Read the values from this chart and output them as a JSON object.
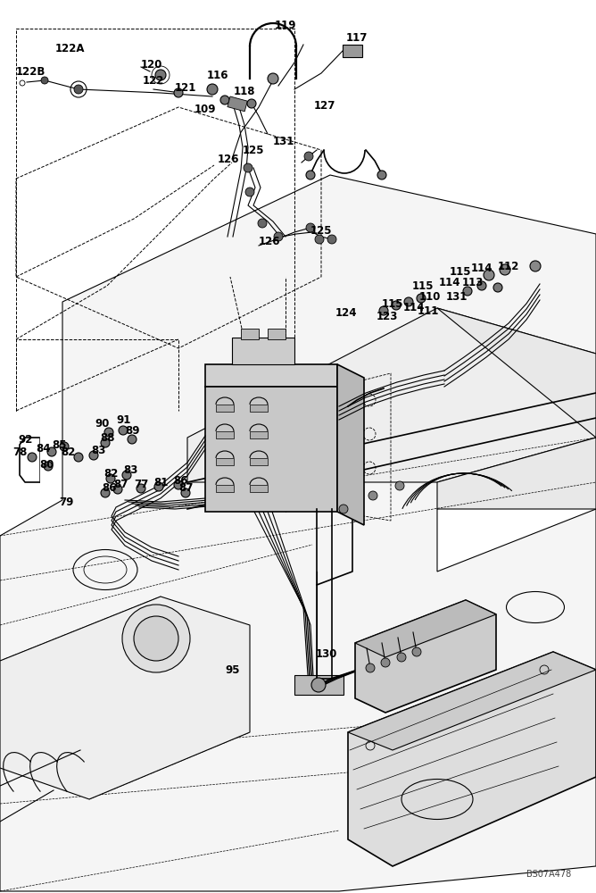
{
  "bg_color": "#ffffff",
  "line_color": "#000000",
  "fig_width": 6.68,
  "fig_height": 10.0,
  "dpi": 100,
  "watermark": "BS07A478",
  "part_labels": [
    [
      "119",
      308,
      28
    ],
    [
      "117",
      388,
      42
    ],
    [
      "122A",
      62,
      55
    ],
    [
      "122B",
      18,
      80
    ],
    [
      "120",
      158,
      72
    ],
    [
      "122",
      160,
      90
    ],
    [
      "116",
      232,
      84
    ],
    [
      "121",
      196,
      98
    ],
    [
      "118",
      262,
      102
    ],
    [
      "127",
      352,
      118
    ],
    [
      "109",
      218,
      122
    ],
    [
      "131",
      306,
      158
    ],
    [
      "125",
      272,
      168
    ],
    [
      "126",
      244,
      178
    ],
    [
      "125",
      348,
      258
    ],
    [
      "126",
      290,
      270
    ],
    [
      "115",
      504,
      304
    ],
    [
      "114",
      528,
      300
    ],
    [
      "112",
      558,
      298
    ],
    [
      "115",
      462,
      320
    ],
    [
      "114",
      492,
      316
    ],
    [
      "113",
      518,
      316
    ],
    [
      "131",
      500,
      332
    ],
    [
      "115",
      428,
      340
    ],
    [
      "114",
      452,
      344
    ],
    [
      "110",
      470,
      332
    ],
    [
      "111",
      468,
      348
    ],
    [
      "123",
      422,
      354
    ],
    [
      "124",
      376,
      350
    ],
    [
      "92",
      20,
      492
    ],
    [
      "90",
      106,
      474
    ],
    [
      "91",
      130,
      470
    ],
    [
      "88",
      112,
      490
    ],
    [
      "89",
      140,
      482
    ],
    [
      "85",
      58,
      498
    ],
    [
      "84",
      40,
      502
    ],
    [
      "83",
      102,
      504
    ],
    [
      "82",
      68,
      506
    ],
    [
      "78",
      14,
      507
    ],
    [
      "80",
      44,
      520
    ],
    [
      "82",
      116,
      530
    ],
    [
      "83",
      138,
      526
    ],
    [
      "87",
      127,
      542
    ],
    [
      "86",
      114,
      547
    ],
    [
      "77",
      150,
      542
    ],
    [
      "81",
      172,
      540
    ],
    [
      "86",
      194,
      538
    ],
    [
      "87",
      200,
      546
    ],
    [
      "79",
      66,
      562
    ],
    [
      "95",
      252,
      750
    ],
    [
      "130",
      354,
      732
    ]
  ]
}
